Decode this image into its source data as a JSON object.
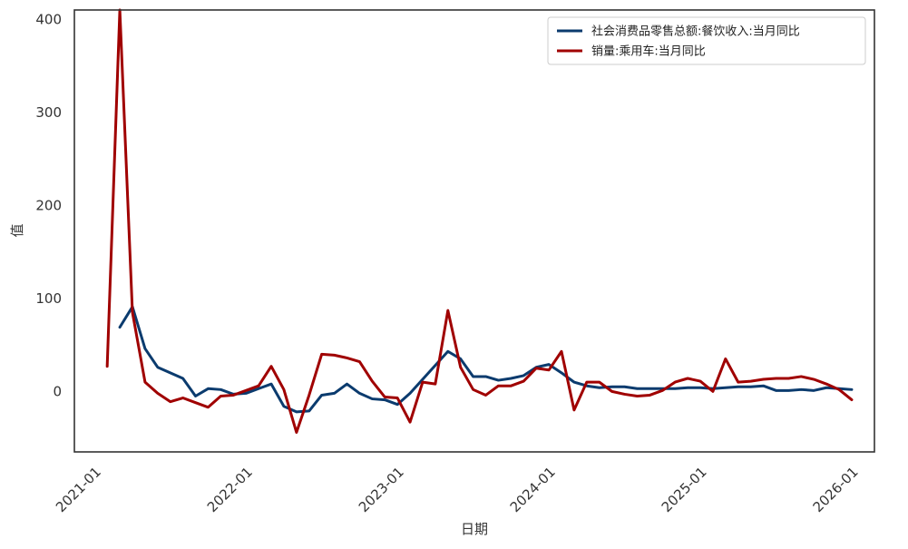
{
  "chart_data": {
    "type": "line",
    "title": "",
    "xlabel": "日期",
    "ylabel": "值",
    "x_ticks": [
      "2021-01",
      "2022-01",
      "2023-01",
      "2024-01",
      "2025-01",
      "2026-01"
    ],
    "y_ticks": [
      0,
      100,
      200,
      300,
      400
    ],
    "xlim": [
      "2020-11",
      "2026-03"
    ],
    "ylim": [
      -65,
      410
    ],
    "grid": false,
    "legend_position": "top-right",
    "series": [
      {
        "name": "社会消费品零售总额:餐饮收入:当月同比",
        "color": "#0b3b6e",
        "points": [
          [
            "2021-03",
            69
          ],
          [
            "2021-04",
            91
          ],
          [
            "2021-05",
            46
          ],
          [
            "2021-06",
            26
          ],
          [
            "2021-07",
            20
          ],
          [
            "2021-08",
            14
          ],
          [
            "2021-09",
            -5
          ],
          [
            "2021-10",
            3
          ],
          [
            "2021-11",
            2
          ],
          [
            "2021-12",
            -3
          ],
          [
            "2022-01",
            -2
          ],
          [
            "2022-02",
            3
          ],
          [
            "2022-03",
            8
          ],
          [
            "2022-04",
            -16
          ],
          [
            "2022-05",
            -22
          ],
          [
            "2022-06",
            -21
          ],
          [
            "2022-07",
            -4
          ],
          [
            "2022-08",
            -2
          ],
          [
            "2022-09",
            8
          ],
          [
            "2022-10",
            -2
          ],
          [
            "2022-11",
            -8
          ],
          [
            "2022-12",
            -9
          ],
          [
            "2023-01",
            -14
          ],
          [
            "2023-02",
            -2
          ],
          [
            "2023-03",
            13
          ],
          [
            "2023-04",
            28
          ],
          [
            "2023-05",
            43
          ],
          [
            "2023-06",
            35
          ],
          [
            "2023-07",
            16
          ],
          [
            "2023-08",
            16
          ],
          [
            "2023-09",
            12
          ],
          [
            "2023-10",
            14
          ],
          [
            "2023-11",
            17
          ],
          [
            "2023-12",
            26
          ],
          [
            "2024-01",
            29
          ],
          [
            "2024-02",
            20
          ],
          [
            "2024-03",
            10
          ],
          [
            "2024-04",
            6
          ],
          [
            "2024-05",
            4
          ],
          [
            "2024-06",
            5
          ],
          [
            "2024-07",
            5
          ],
          [
            "2024-08",
            3
          ],
          [
            "2024-09",
            3
          ],
          [
            "2024-10",
            3
          ],
          [
            "2024-11",
            3
          ],
          [
            "2024-12",
            4
          ],
          [
            "2025-01",
            4
          ],
          [
            "2025-02",
            3
          ],
          [
            "2025-03",
            4
          ],
          [
            "2025-04",
            5
          ],
          [
            "2025-05",
            5
          ],
          [
            "2025-06",
            6
          ],
          [
            "2025-07",
            1
          ],
          [
            "2025-08",
            1
          ],
          [
            "2025-09",
            2
          ],
          [
            "2025-10",
            1
          ],
          [
            "2025-11",
            4
          ],
          [
            "2025-12",
            3
          ],
          [
            "2026-01",
            2
          ]
        ]
      },
      {
        "name": "销量:乘用车:当月同比",
        "color": "#a00000",
        "points": [
          [
            "2021-02",
            27
          ],
          [
            "2021-03",
            410
          ],
          [
            "2021-04",
            85
          ],
          [
            "2021-05",
            10
          ],
          [
            "2021-06",
            -2
          ],
          [
            "2021-07",
            -11
          ],
          [
            "2021-08",
            -7
          ],
          [
            "2021-09",
            -12
          ],
          [
            "2021-10",
            -17
          ],
          [
            "2021-11",
            -5
          ],
          [
            "2021-12",
            -4
          ],
          [
            "2022-01",
            1
          ],
          [
            "2022-02",
            6
          ],
          [
            "2022-03",
            27
          ],
          [
            "2022-04",
            2
          ],
          [
            "2022-05",
            -44
          ],
          [
            "2022-06",
            -4
          ],
          [
            "2022-07",
            40
          ],
          [
            "2022-08",
            39
          ],
          [
            "2022-09",
            36
          ],
          [
            "2022-10",
            32
          ],
          [
            "2022-11",
            11
          ],
          [
            "2022-12",
            -6
          ],
          [
            "2023-01",
            -7
          ],
          [
            "2023-02",
            -33
          ],
          [
            "2023-03",
            10
          ],
          [
            "2023-04",
            8
          ],
          [
            "2023-05",
            87
          ],
          [
            "2023-06",
            26
          ],
          [
            "2023-07",
            2
          ],
          [
            "2023-08",
            -4
          ],
          [
            "2023-09",
            6
          ],
          [
            "2023-10",
            6
          ],
          [
            "2023-11",
            11
          ],
          [
            "2023-12",
            25
          ],
          [
            "2024-01",
            23
          ],
          [
            "2024-02",
            43
          ],
          [
            "2024-03",
            -20
          ],
          [
            "2024-04",
            10
          ],
          [
            "2024-05",
            10
          ],
          [
            "2024-06",
            0
          ],
          [
            "2024-07",
            -3
          ],
          [
            "2024-08",
            -5
          ],
          [
            "2024-09",
            -4
          ],
          [
            "2024-10",
            1
          ],
          [
            "2024-11",
            10
          ],
          [
            "2024-12",
            14
          ],
          [
            "2025-01",
            11
          ],
          [
            "2025-02",
            0
          ],
          [
            "2025-03",
            35
          ],
          [
            "2025-04",
            10
          ],
          [
            "2025-05",
            11
          ],
          [
            "2025-06",
            13
          ],
          [
            "2025-07",
            14
          ],
          [
            "2025-08",
            14
          ],
          [
            "2025-09",
            16
          ],
          [
            "2025-10",
            13
          ],
          [
            "2025-11",
            8
          ],
          [
            "2025-12",
            2
          ],
          [
            "2026-01",
            -9
          ]
        ]
      }
    ]
  }
}
